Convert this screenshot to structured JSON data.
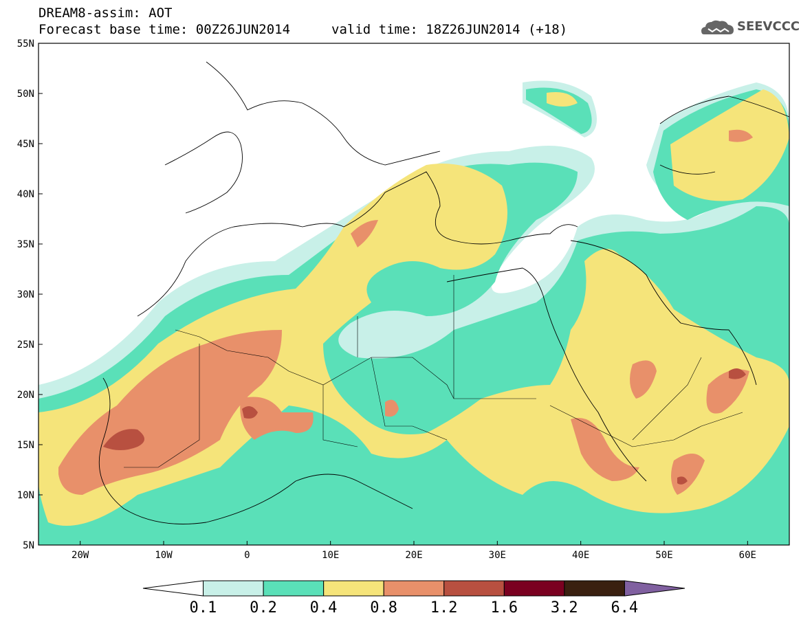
{
  "header": {
    "line1": "DREAM8-assim: AOT",
    "line2": "Forecast base time: 00Z26JUN2014",
    "valid": "valid time: 18Z26JUN2014 (+18)"
  },
  "logo": {
    "text": "SEEVCCC",
    "icon": "cloud-icon"
  },
  "map": {
    "lat_labels": [
      "55N",
      "50N",
      "45N",
      "40N",
      "35N",
      "30N",
      "25N",
      "20N",
      "15N",
      "10N",
      "5N"
    ],
    "lon_labels": [
      "20W",
      "10W",
      "0",
      "10E",
      "20E",
      "30E",
      "40E",
      "50E",
      "60E"
    ],
    "lat_range": [
      5,
      55
    ],
    "lon_range": [
      -25,
      65
    ]
  },
  "colorbar": {
    "labels": [
      "0.1",
      "0.2",
      "0.4",
      "0.8",
      "1.2",
      "1.6",
      "3.2",
      "6.4"
    ],
    "colors": [
      "#ffffff",
      "#c8f0e8",
      "#5ae0b8",
      "#f5e47a",
      "#e8906a",
      "#b85040",
      "#7a0020",
      "#3a2010",
      "#8060a0"
    ]
  }
}
